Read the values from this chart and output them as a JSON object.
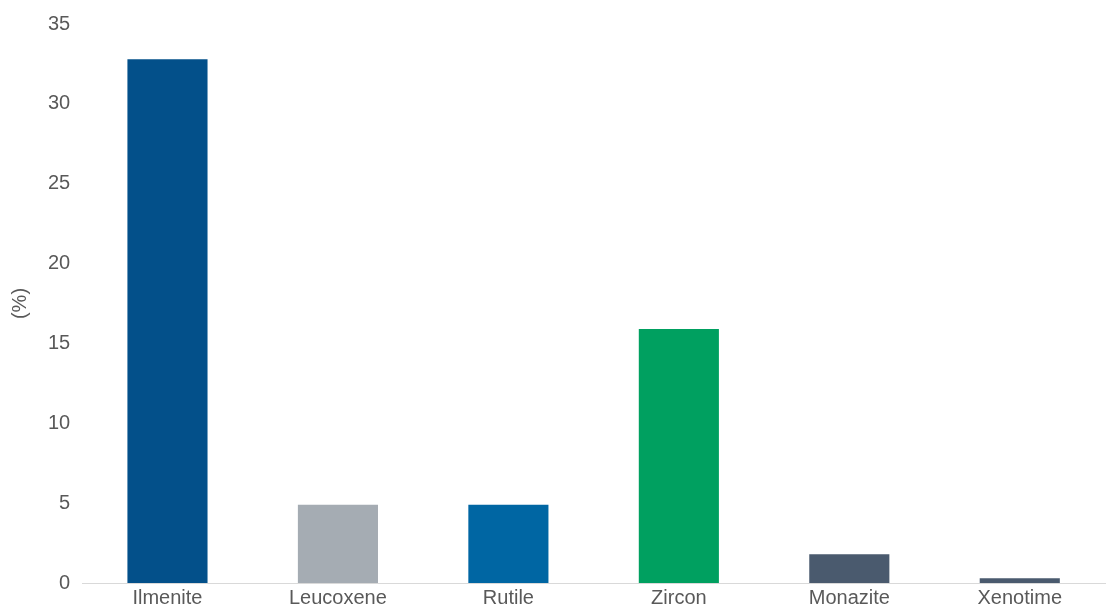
{
  "chart_data": {
    "type": "bar",
    "ylabel": "(%)",
    "categories": [
      "Ilmenite",
      "Leucoxene",
      "Rutile",
      "Zircon",
      "Monazite",
      "Xenotime"
    ],
    "values": [
      32.8,
      4.9,
      4.9,
      15.9,
      1.8,
      0.3
    ],
    "colors": [
      "#03508a",
      "#a5acb3",
      "#0066a3",
      "#00a060",
      "#4a5a6e",
      "#4a5a6e"
    ],
    "ylim": [
      0,
      35
    ],
    "yticks": [
      0,
      5,
      10,
      15,
      20,
      25,
      30,
      35
    ],
    "grid": false,
    "legend": false
  }
}
